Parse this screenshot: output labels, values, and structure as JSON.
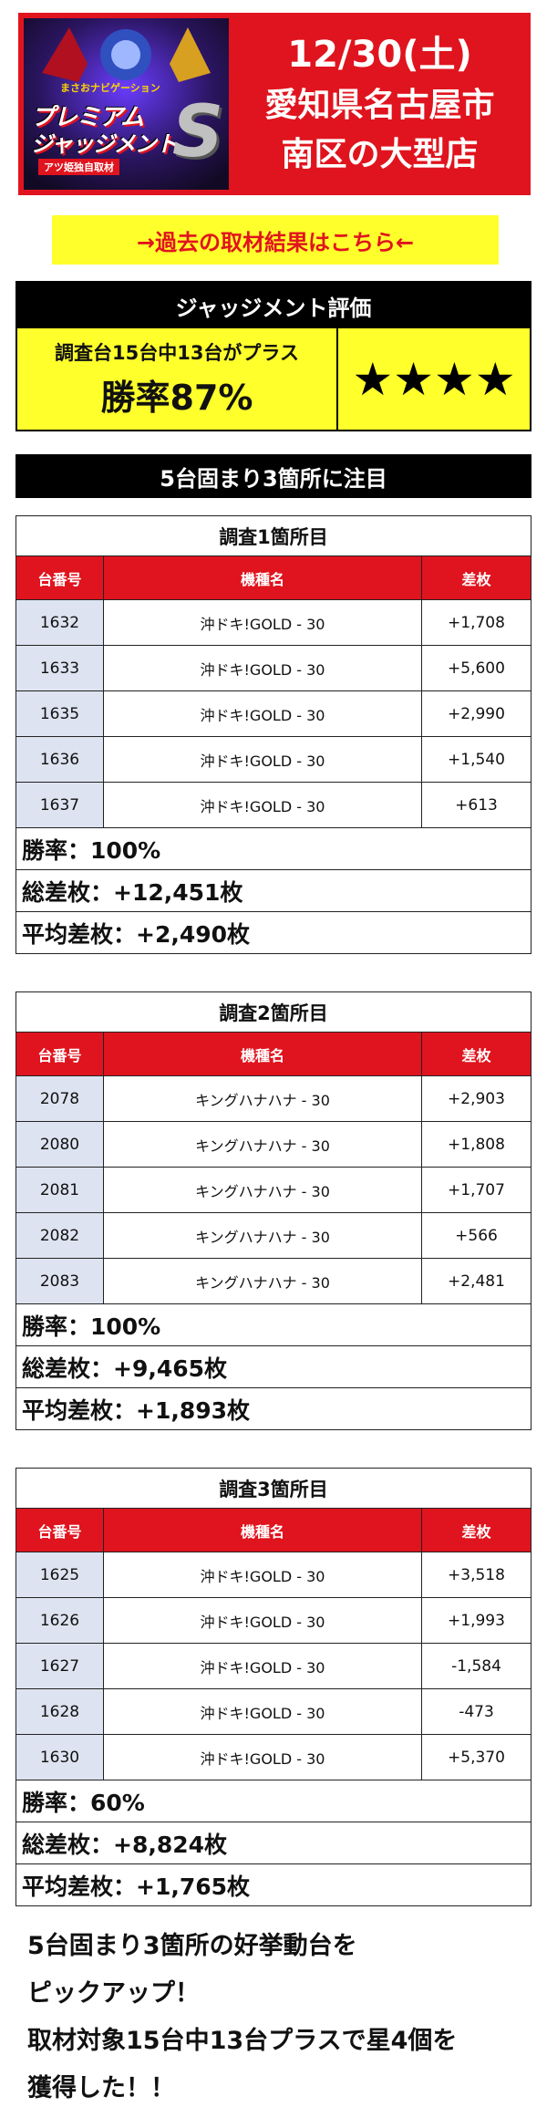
{
  "header": {
    "logo": {
      "line1": "まさおナビゲーション",
      "line2": "プレミアム",
      "line3": "ジャッジメント",
      "line4": "アツ姫独自取材",
      "letter": "S"
    },
    "date": "12/30(土)",
    "location_line1": "愛知県名古屋市",
    "location_line2": "南区の大型店"
  },
  "past_link": "→過去の取材結果はこちら←",
  "evaluation": {
    "title": "ジャッジメント評価",
    "summary": "調査台15台中13台がプラス",
    "win_rate": "勝率87%",
    "stars": "★★★★"
  },
  "notice": "5台固まり3箇所に注目",
  "columns": {
    "number": "台番号",
    "machine": "機種名",
    "diff": "差枚"
  },
  "sections": [
    {
      "title": "調査1箇所目",
      "rows": [
        {
          "no": "1632",
          "machine": "沖ドキ!GOLD - 30",
          "diff": "+1,708"
        },
        {
          "no": "1633",
          "machine": "沖ドキ!GOLD - 30",
          "diff": "+5,600"
        },
        {
          "no": "1635",
          "machine": "沖ドキ!GOLD - 30",
          "diff": "+2,990"
        },
        {
          "no": "1636",
          "machine": "沖ドキ!GOLD - 30",
          "diff": "+1,540"
        },
        {
          "no": "1637",
          "machine": "沖ドキ!GOLD - 30",
          "diff": "+613"
        }
      ],
      "win_rate": "勝率：100%",
      "total": "総差枚：+12,451枚",
      "average": "平均差枚：+2,490枚"
    },
    {
      "title": "調査2箇所目",
      "rows": [
        {
          "no": "2078",
          "machine": "キングハナハナ - 30",
          "diff": "+2,903"
        },
        {
          "no": "2080",
          "machine": "キングハナハナ - 30",
          "diff": "+1,808"
        },
        {
          "no": "2081",
          "machine": "キングハナハナ - 30",
          "diff": "+1,707"
        },
        {
          "no": "2082",
          "machine": "キングハナハナ - 30",
          "diff": "+566"
        },
        {
          "no": "2083",
          "machine": "キングハナハナ - 30",
          "diff": "+2,481"
        }
      ],
      "win_rate": "勝率：100%",
      "total": "総差枚：+9,465枚",
      "average": "平均差枚：+1,893枚"
    },
    {
      "title": "調査3箇所目",
      "rows": [
        {
          "no": "1625",
          "machine": "沖ドキ!GOLD - 30",
          "diff": "+3,518"
        },
        {
          "no": "1626",
          "machine": "沖ドキ!GOLD - 30",
          "diff": "+1,993"
        },
        {
          "no": "1627",
          "machine": "沖ドキ!GOLD - 30",
          "diff": "-1,584"
        },
        {
          "no": "1628",
          "machine": "沖ドキ!GOLD - 30",
          "diff": "-473"
        },
        {
          "no": "1630",
          "machine": "沖ドキ!GOLD - 30",
          "diff": "+5,370"
        }
      ],
      "win_rate": "勝率：60%",
      "total": "総差枚：+8,824枚",
      "average": "平均差枚：+1,765枚"
    }
  ],
  "summary_lines": [
    "5台固まり3箇所の好挙動台を",
    "ピックアップ！",
    "取材対象15台中13台プラスで星4個を",
    "獲得した！！"
  ]
}
